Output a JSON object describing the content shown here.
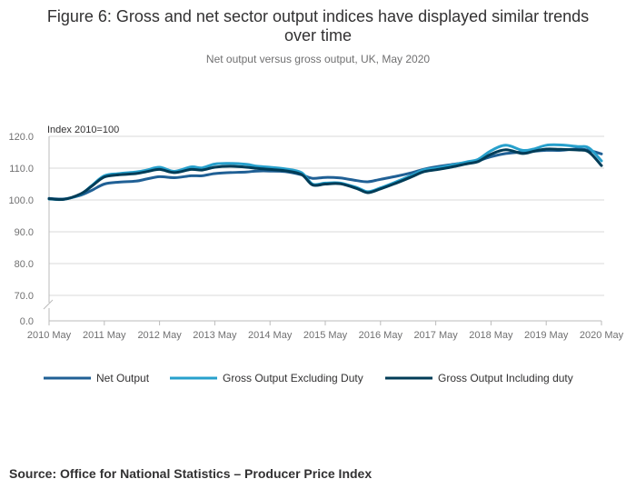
{
  "title": "Figure 6: Gross and net sector output indices have displayed similar trends over time",
  "title_lines": [
    "Figure 6: Gross and net sector output indices have displayed similar trends",
    "over time"
  ],
  "subtitle": "Net output versus gross output, UK, May 2020",
  "source": "Source: Office for National Statistics – Producer Price Index",
  "chart_data": {
    "type": "line",
    "title": "Figure 6: Gross and net sector output indices have displayed similar trends over time",
    "subtitle": "Net output versus gross output, UK, May 2020",
    "ylabel": "Index 2010=100",
    "xlabel": "",
    "ylim": [
      0,
      120
    ],
    "axis_break": "between 0.0 and 70.0",
    "y_ticks": [
      "120.0",
      "110.0",
      "100.0",
      "90.0",
      "80.0",
      "70.0",
      "0.0"
    ],
    "y_tick_values": [
      120,
      110,
      100,
      90,
      80,
      70,
      0
    ],
    "x_ticks": [
      "2010 May",
      "2011 May",
      "2012 May",
      "2013 May",
      "2014 May",
      "2015 May",
      "2016 May",
      "2017 May",
      "2018 May",
      "2019 May",
      "2020 May"
    ],
    "x_tick_years": [
      2010.33,
      2011.33,
      2012.33,
      2013.33,
      2014.33,
      2015.33,
      2016.33,
      2017.33,
      2018.33,
      2019.33,
      2020.33
    ],
    "x_range": [
      2010.33,
      2020.33
    ],
    "grid": true,
    "legend_position": "bottom",
    "series": [
      {
        "name": "Net Output",
        "color": "#206095",
        "x": [
          2010.33,
          2010.6,
          2010.9,
          2011.1,
          2011.33,
          2011.6,
          2011.9,
          2012.1,
          2012.33,
          2012.6,
          2012.9,
          2013.1,
          2013.33,
          2013.6,
          2013.9,
          2014.1,
          2014.33,
          2014.6,
          2014.9,
          2015.1,
          2015.33,
          2015.6,
          2015.9,
          2016.1,
          2016.33,
          2016.6,
          2016.9,
          2017.1,
          2017.33,
          2017.6,
          2017.9,
          2018.1,
          2018.33,
          2018.6,
          2018.9,
          2019.1,
          2019.33,
          2019.6,
          2019.9,
          2020.1,
          2020.33
        ],
        "values": [
          100.5,
          100.3,
          101.5,
          103.0,
          105.0,
          105.6,
          105.9,
          106.6,
          107.3,
          107.0,
          107.6,
          107.6,
          108.3,
          108.6,
          108.8,
          109.1,
          109.1,
          108.9,
          107.9,
          106.8,
          107.1,
          106.9,
          106.1,
          105.7,
          106.5,
          107.4,
          108.6,
          109.6,
          110.4,
          111.1,
          111.8,
          112.4,
          113.6,
          114.6,
          115.1,
          115.3,
          115.6,
          115.6,
          116.1,
          115.6,
          114.5
        ]
      },
      {
        "name": "Gross Output Excluding Duty",
        "color": "#27a0cc",
        "x": [
          2010.33,
          2010.6,
          2010.9,
          2011.1,
          2011.33,
          2011.6,
          2011.9,
          2012.1,
          2012.33,
          2012.6,
          2012.9,
          2013.1,
          2013.33,
          2013.6,
          2013.9,
          2014.1,
          2014.33,
          2014.6,
          2014.9,
          2015.1,
          2015.33,
          2015.6,
          2015.9,
          2016.1,
          2016.33,
          2016.6,
          2016.9,
          2017.1,
          2017.33,
          2017.6,
          2017.9,
          2018.1,
          2018.33,
          2018.6,
          2018.9,
          2019.1,
          2019.33,
          2019.6,
          2019.9,
          2020.1,
          2020.33
        ],
        "values": [
          100.3,
          100.2,
          101.8,
          104.5,
          107.6,
          108.3,
          108.8,
          109.4,
          110.3,
          109.0,
          110.4,
          110.1,
          111.3,
          111.5,
          111.2,
          110.6,
          110.3,
          109.8,
          108.6,
          105.0,
          105.3,
          105.3,
          103.9,
          102.6,
          103.8,
          105.6,
          107.8,
          109.4,
          110.0,
          110.9,
          112.0,
          112.8,
          115.5,
          117.2,
          115.6,
          116.0,
          117.2,
          117.3,
          116.8,
          116.4,
          112.3
        ]
      },
      {
        "name": "Gross Output Including duty",
        "color": "#003c57",
        "x": [
          2010.33,
          2010.6,
          2010.9,
          2011.1,
          2011.33,
          2011.6,
          2011.9,
          2012.1,
          2012.33,
          2012.6,
          2012.9,
          2013.1,
          2013.33,
          2013.6,
          2013.9,
          2014.1,
          2014.33,
          2014.6,
          2014.9,
          2015.1,
          2015.33,
          2015.6,
          2015.9,
          2016.1,
          2016.33,
          2016.6,
          2016.9,
          2017.1,
          2017.33,
          2017.6,
          2017.9,
          2018.1,
          2018.33,
          2018.6,
          2018.9,
          2019.1,
          2019.33,
          2019.6,
          2019.9,
          2020.1,
          2020.33
        ],
        "values": [
          100.4,
          100.2,
          101.9,
          104.3,
          107.2,
          107.9,
          108.3,
          108.9,
          109.6,
          108.6,
          109.6,
          109.4,
          110.3,
          110.6,
          110.3,
          109.9,
          109.6,
          109.2,
          108.0,
          104.7,
          105.0,
          105.1,
          103.6,
          102.3,
          103.5,
          105.2,
          107.3,
          108.8,
          109.5,
          110.3,
          111.4,
          112.1,
          114.4,
          115.8,
          114.6,
          115.3,
          116.0,
          115.9,
          115.7,
          115.1,
          110.8
        ]
      }
    ]
  }
}
